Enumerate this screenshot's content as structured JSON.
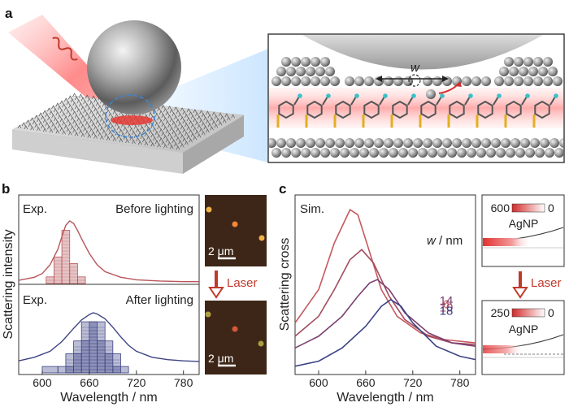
{
  "panel_labels": {
    "a": "a",
    "b": "b",
    "c": "c"
  },
  "panel_a": {
    "gap_label": "w"
  },
  "panel_b": {
    "top_exp": "Exp.",
    "top_cond": "Before lighting",
    "bottom_exp": "Exp.",
    "bottom_cond": "After lighting",
    "ylabel": "Scattering intensity",
    "xlabel": "Wavelength / nm",
    "scale_top": "2 μm",
    "scale_bottom": "2 μm",
    "arrow_label": "Laser",
    "colors": {
      "before": "#b85559",
      "after": "#3d4384"
    }
  },
  "panel_c": {
    "sim": "Sim.",
    "legend_title_var": "w",
    "legend_title_unit": " / nm",
    "ylabel": "Scattering cross",
    "xlabel": "Wavelength / nm",
    "arrow_label": "Laser",
    "inset_top": {
      "max": "600",
      "min": "0",
      "label": "AgNP"
    },
    "inset_bottom": {
      "max": "250",
      "min": "0",
      "label": "AgNP"
    }
  },
  "chart_data": [
    {
      "type": "line",
      "panel": "b-top",
      "title": "Before lighting",
      "xlabel": "Wavelength / nm",
      "ylabel": "Scattering intensity",
      "xlim": [
        570,
        800
      ],
      "xticks": [
        600,
        660,
        720,
        780
      ],
      "series": [
        {
          "name": "Before lighting",
          "x": [
            570,
            590,
            600,
            610,
            620,
            625,
            630,
            635,
            640,
            645,
            650,
            660,
            670,
            680,
            700,
            720,
            750,
            780,
            800
          ],
          "y": [
            0.05,
            0.1,
            0.16,
            0.3,
            0.55,
            0.75,
            0.93,
            1.0,
            0.96,
            0.85,
            0.72,
            0.48,
            0.3,
            0.19,
            0.1,
            0.06,
            0.04,
            0.03,
            0.03
          ]
        }
      ],
      "histogram": {
        "bin_centers": [
          610,
          620,
          630,
          640,
          650
        ],
        "counts": [
          1,
          4,
          8,
          3,
          1
        ]
      }
    },
    {
      "type": "line",
      "panel": "b-bottom",
      "title": "After lighting",
      "xlabel": "Wavelength / nm",
      "ylabel": "Scattering intensity",
      "xlim": [
        570,
        800
      ],
      "xticks": [
        600,
        660,
        720,
        780
      ],
      "series": [
        {
          "name": "After lighting",
          "x": [
            570,
            590,
            610,
            625,
            640,
            650,
            660,
            665,
            670,
            680,
            690,
            700,
            710,
            720,
            740,
            760,
            780,
            800
          ],
          "y": [
            0.2,
            0.26,
            0.36,
            0.52,
            0.74,
            0.88,
            0.97,
            1.0,
            0.98,
            0.9,
            0.76,
            0.6,
            0.46,
            0.36,
            0.26,
            0.22,
            0.2,
            0.19
          ]
        }
      ],
      "histogram": {
        "bin_centers": [
          610,
          630,
          640,
          650,
          660,
          670,
          680,
          690,
          700
        ],
        "counts": [
          1,
          1,
          3,
          5,
          8,
          8,
          5,
          3,
          1
        ]
      }
    },
    {
      "type": "line",
      "panel": "c",
      "xlabel": "Wavelength / nm",
      "ylabel": "Scattering cross",
      "xlim": [
        570,
        800
      ],
      "xticks": [
        600,
        660,
        720,
        780
      ],
      "series": [
        {
          "name": "6",
          "color": "#c65a5f",
          "peak": 643,
          "x": [
            570,
            600,
            620,
            640,
            650,
            660,
            680,
            700,
            730,
            760,
            800
          ],
          "y": [
            0.3,
            0.5,
            0.78,
            0.98,
            0.95,
            0.8,
            0.5,
            0.34,
            0.24,
            0.2,
            0.18
          ]
        },
        {
          "name": "10",
          "color": "#a34c60",
          "peak": 655,
          "x": [
            570,
            600,
            620,
            640,
            655,
            670,
            690,
            710,
            740,
            770,
            800
          ],
          "y": [
            0.22,
            0.34,
            0.5,
            0.68,
            0.74,
            0.66,
            0.46,
            0.32,
            0.22,
            0.18,
            0.17
          ]
        },
        {
          "name": "14",
          "color": "#7a4070",
          "peak": 675,
          "x": [
            570,
            600,
            630,
            650,
            665,
            675,
            690,
            710,
            740,
            770,
            800
          ],
          "y": [
            0.15,
            0.22,
            0.34,
            0.46,
            0.54,
            0.56,
            0.5,
            0.36,
            0.24,
            0.18,
            0.16
          ]
        },
        {
          "name": "18",
          "color": "#3d4384",
          "peak": 692,
          "x": [
            570,
            600,
            630,
            660,
            680,
            692,
            705,
            720,
            750,
            780,
            800
          ],
          "y": [
            0.04,
            0.07,
            0.15,
            0.28,
            0.4,
            0.44,
            0.4,
            0.3,
            0.16,
            0.1,
            0.08
          ]
        }
      ]
    }
  ]
}
